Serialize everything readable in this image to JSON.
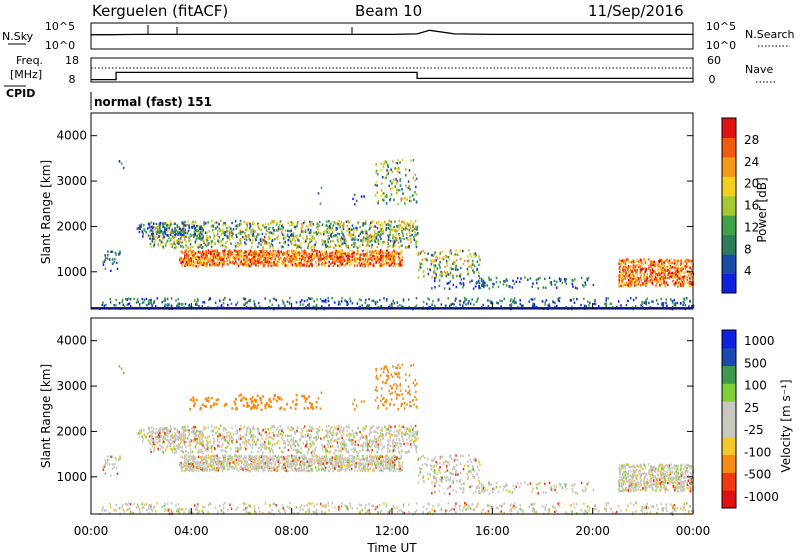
{
  "header": {
    "station": "Kerguelen (fitACF)",
    "beam": "Beam 10",
    "date": "11/Sep/2016"
  },
  "strip": {
    "nsky_label": "N.Sky",
    "nsearch_label": "N.Search",
    "noise_ticks": [
      "10^5",
      "10^0"
    ],
    "freq_label": "Freq.",
    "freq_unit": "[MHz]",
    "freq_ticks": [
      "18",
      "8"
    ],
    "nave_label": "Nave",
    "nave_ticks": [
      "60",
      "0"
    ],
    "cpid_label": "CPID",
    "cpid_text": "normal (fast) 151"
  },
  "colors": {
    "power": [
      "#1020e0",
      "#1a4aa8",
      "#2e7d5a",
      "#3fa24a",
      "#a8c832",
      "#f2d21e",
      "#f59a14",
      "#f25a10",
      "#e01010"
    ],
    "velocity": [
      "#e01010",
      "#f03a14",
      "#f58a14",
      "#f2c82a",
      "#c8c8c0",
      "#c8c8c0",
      "#7fd03a",
      "#3e9a4a",
      "#1a4ab0",
      "#1020e0"
    ]
  },
  "chart_data": [
    {
      "type": "line",
      "name": "noise",
      "x": [
        0,
        0.7,
        2.0,
        4.0,
        8.0,
        12.0,
        13.0,
        13.5,
        14.5,
        16.0,
        20.0,
        24.0
      ],
      "y": [
        0.55,
        0.55,
        0.56,
        0.56,
        0.56,
        0.56,
        0.58,
        0.72,
        0.58,
        0.56,
        0.56,
        0.56
      ],
      "xlim": [
        0,
        24
      ]
    },
    {
      "type": "line",
      "name": "frequency",
      "x": [
        0,
        1.0,
        1.0,
        13.0,
        13.0,
        24.0
      ],
      "y": [
        9.0,
        9.0,
        12.0,
        12.0,
        9.5,
        9.5
      ],
      "ylim": [
        8,
        18
      ],
      "xlim": [
        0,
        24
      ]
    },
    {
      "type": "heatmap",
      "name": "power",
      "xlabel": "Time UT",
      "ylabel": "Slant Range [km]",
      "colorbar_label": "Power [dB]",
      "colorbar_ticks": [
        4,
        8,
        12,
        16,
        20,
        24,
        28
      ],
      "xlim": [
        0,
        24
      ],
      "ylim": [
        180,
        4500
      ],
      "yticks": [
        1000,
        2000,
        3000,
        4000
      ],
      "xticks": [
        "00:00",
        "04:00",
        "08:00",
        "12:00",
        "16:00",
        "20:00",
        "00:00"
      ]
    },
    {
      "type": "heatmap",
      "name": "velocity",
      "xlabel": "Time UT",
      "ylabel": "Slant Range [km]",
      "colorbar_label": "Velocity [m s⁻¹]",
      "colorbar_ticks": [
        "1000",
        "500",
        "100",
        "25",
        "-25",
        "-100",
        "-500",
        "-1000"
      ],
      "xlim": [
        0,
        24
      ],
      "ylim": [
        180,
        4500
      ],
      "yticks": [
        1000,
        2000,
        3000,
        4000
      ],
      "xticks": [
        "00:00",
        "04:00",
        "08:00",
        "12:00",
        "16:00",
        "20:00",
        "00:00"
      ]
    }
  ]
}
